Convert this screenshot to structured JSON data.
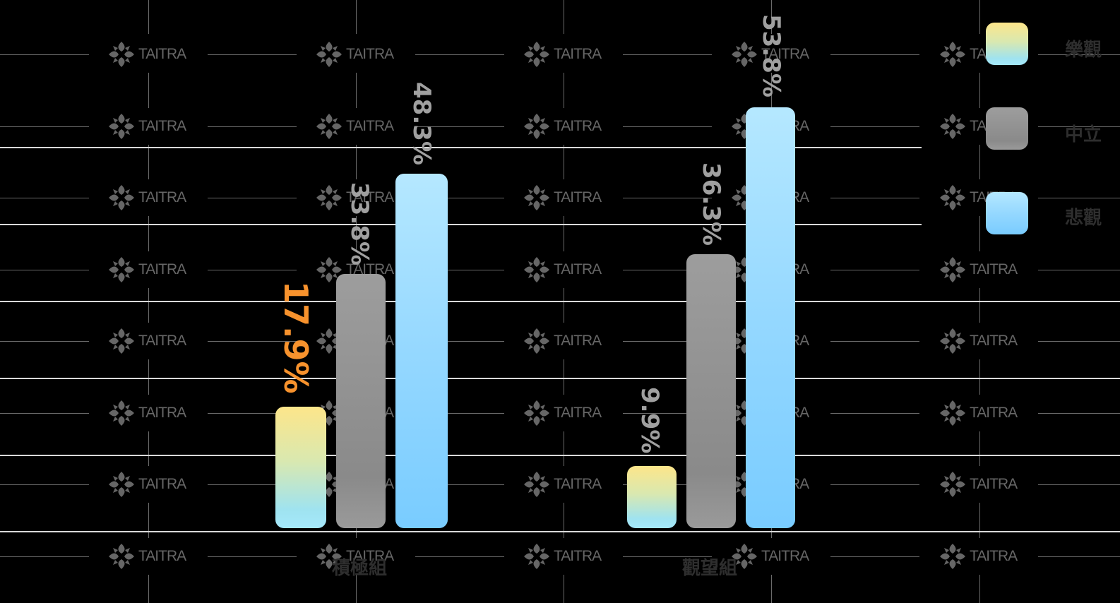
{
  "chart_data": {
    "type": "bar",
    "title": "",
    "xlabel": "",
    "ylabel": "",
    "categories": [
      "積極組",
      "觀望組"
    ],
    "series": [
      {
        "name": "樂觀",
        "values": [
          17.9,
          9.9
        ],
        "color": "#fde68a"
      },
      {
        "name": "中立",
        "values": [
          33.8,
          36.3
        ],
        "color": "#8f8f8f"
      },
      {
        "name": "悲觀",
        "values": [
          48.3,
          53.8
        ],
        "color": "#8dd6ff"
      }
    ],
    "data_labels": {
      "積極組": [
        "17.9%",
        "33.8%",
        "48.3%"
      ],
      "觀望組": [
        "9.9%",
        "36.3%",
        "53.8%"
      ]
    },
    "highlighted_label": "17.9%",
    "ylim": [
      0,
      60
    ],
    "grid": true,
    "legend_position": "right",
    "label_orientation": "vertical"
  },
  "legend": {
    "items": [
      {
        "label": "樂觀"
      },
      {
        "label": "中立"
      },
      {
        "label": "悲觀"
      }
    ]
  },
  "categories": {
    "group1": "積極組",
    "group2": "觀望組"
  },
  "labels": {
    "g1_opt": "17.9%",
    "g1_neu": "33.8%",
    "g1_pes": "48.3%",
    "g2_opt": "9.9%",
    "g2_neu": "36.3%",
    "g2_pes": "53.8%"
  },
  "watermark": {
    "text": "TAITRA",
    "icon": "taitra-logo-icon"
  },
  "colors": {
    "highlight": "#f7922d",
    "label_gray": "#a0a0a0",
    "gridline": "#d9d9d9"
  }
}
